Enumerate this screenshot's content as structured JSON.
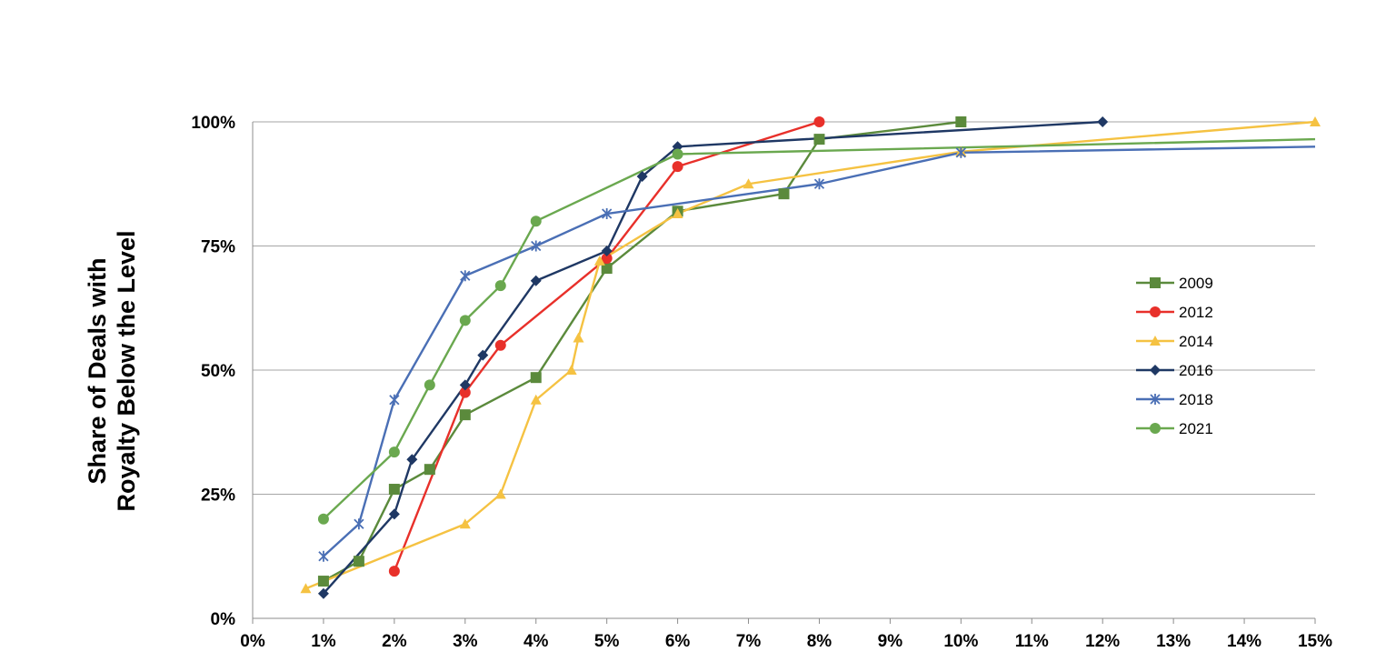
{
  "chart_data": {
    "type": "line",
    "title": "",
    "xlabel": "",
    "ylabel_lines": [
      "Share of Deals with",
      "Royalty Below the Level"
    ],
    "x_ticks": [
      "0%",
      "1%",
      "2%",
      "3%",
      "4%",
      "5%",
      "6%",
      "7%",
      "8%",
      "9%",
      "10%",
      "11%",
      "12%",
      "13%",
      "14%",
      "15%"
    ],
    "y_ticks": [
      "0%",
      "25%",
      "50%",
      "75%",
      "100%"
    ],
    "xlim": [
      0,
      15
    ],
    "ylim": [
      0,
      100
    ],
    "grid": "horizontal",
    "legend_position": "right",
    "series": [
      {
        "name": "2009",
        "color": "#5b8a3c",
        "marker": "square",
        "points": [
          [
            1,
            7.5
          ],
          [
            1.5,
            11.5
          ],
          [
            2,
            26
          ],
          [
            2.5,
            30
          ],
          [
            3,
            41
          ],
          [
            4,
            48.5
          ],
          [
            5,
            70.5
          ],
          [
            6,
            82
          ],
          [
            7.5,
            85.5
          ],
          [
            8,
            96.5
          ],
          [
            10,
            100
          ]
        ]
      },
      {
        "name": "2012",
        "color": "#e8302a",
        "marker": "circle",
        "points": [
          [
            2,
            9.5
          ],
          [
            3,
            45.5
          ],
          [
            3.5,
            55
          ],
          [
            5,
            72.5
          ],
          [
            6,
            91
          ],
          [
            8,
            100
          ]
        ]
      },
      {
        "name": "2014",
        "color": "#f5c242",
        "marker": "triangle",
        "points": [
          [
            0.75,
            6
          ],
          [
            3,
            19
          ],
          [
            3.5,
            25
          ],
          [
            4,
            44
          ],
          [
            4.5,
            50
          ],
          [
            4.6,
            56.5
          ],
          [
            4.9,
            72
          ],
          [
            6,
            81.5
          ],
          [
            7,
            87.5
          ],
          [
            10,
            94
          ],
          [
            15,
            100
          ]
        ]
      },
      {
        "name": "2016",
        "color": "#1f3864",
        "marker": "diamond",
        "points": [
          [
            1,
            5
          ],
          [
            2,
            21
          ],
          [
            2.25,
            32
          ],
          [
            3,
            47
          ],
          [
            3.25,
            53
          ],
          [
            4,
            68
          ],
          [
            5,
            74
          ],
          [
            5.5,
            89
          ],
          [
            6,
            95
          ],
          [
            12,
            100
          ]
        ]
      },
      {
        "name": "2018",
        "color": "#4a6fb5",
        "marker": "star",
        "points": [
          [
            1,
            12.5
          ],
          [
            1.5,
            19
          ],
          [
            2,
            44
          ],
          [
            3,
            69
          ],
          [
            4,
            75
          ],
          [
            5,
            81.5
          ],
          [
            8,
            87.5
          ],
          [
            10,
            93.8
          ],
          [
            15,
            95
          ]
        ]
      },
      {
        "name": "2021",
        "color": "#6aa84f",
        "marker": "circle",
        "points": [
          [
            1,
            20
          ],
          [
            2,
            33.5
          ],
          [
            2.5,
            47
          ],
          [
            3,
            60
          ],
          [
            3.5,
            67
          ],
          [
            4,
            80
          ],
          [
            6,
            93.5
          ],
          [
            15,
            96.5
          ]
        ]
      }
    ]
  }
}
